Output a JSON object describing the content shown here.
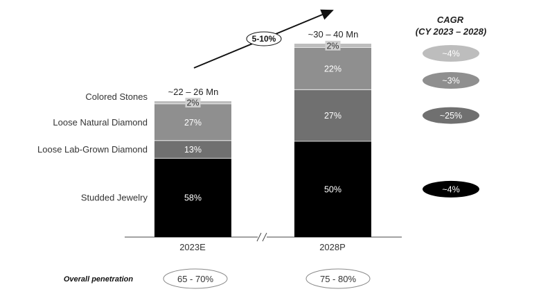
{
  "chart_data": {
    "type": "bar",
    "stacked": true,
    "categories": [
      "2023E",
      "2028P"
    ],
    "totals": [
      "~22 – 26 Mn",
      "~30 – 40 Mn"
    ],
    "series": [
      {
        "name": "Studded Jewelry",
        "values": [
          58,
          50
        ],
        "labels": [
          "58%",
          "50%"
        ],
        "color": "#000000",
        "cagr": "~4%"
      },
      {
        "name": "Loose Lab-Grown Diamond",
        "values": [
          13,
          27
        ],
        "labels": [
          "13%",
          "27%"
        ],
        "color": "#707070",
        "cagr": "~25%"
      },
      {
        "name": "Loose Natural Diamond",
        "values": [
          27,
          22
        ],
        "labels": [
          "27%",
          "22%"
        ],
        "color": "#8f8f8f",
        "cagr": "~3%"
      },
      {
        "name": "Colored Stones",
        "values": [
          2,
          2
        ],
        "labels": [
          "2%",
          "2%"
        ],
        "color": "#bdbdbd",
        "cagr": "~4%"
      }
    ],
    "growth_label": "5-10%",
    "cagr_title": [
      "CAGR",
      "(CY 2023 – 2028)"
    ],
    "cagr_order_top_to_bottom": [
      "~4%",
      "~3%",
      "~25%",
      "~4%"
    ],
    "cagr_colors": [
      "#bdbdbd",
      "#8f8f8f",
      "#707070",
      "#000000"
    ],
    "overall_penetration": {
      "label": "Overall penetration",
      "values": [
        "65 - 70%",
        "75 - 80%"
      ]
    },
    "ylim": [
      0,
      100
    ],
    "grid": false
  }
}
